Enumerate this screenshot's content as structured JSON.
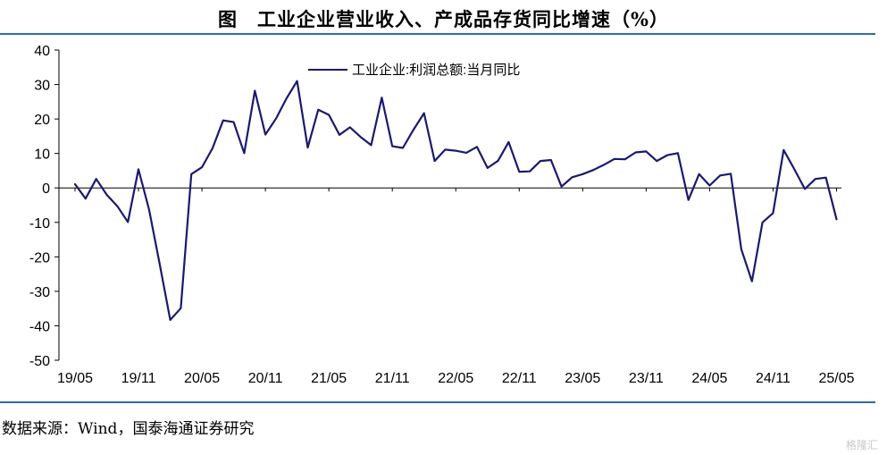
{
  "figure": {
    "title": "图　工业企业营业收入、产成品存货同比增速（%）",
    "source": "数据来源：Wind，国泰海通证券研究",
    "watermark": "格隆汇"
  },
  "colors": {
    "series": "#1a1a6e",
    "rule": "#2e6da4",
    "axis": "#000000"
  },
  "chart_data": {
    "type": "line",
    "title": "",
    "xlabel": "",
    "ylabel": "",
    "ylim": [
      -50,
      40
    ],
    "yticks": [
      40,
      30,
      20,
      10,
      0,
      -10,
      -20,
      -30,
      -40,
      -50
    ],
    "grid": false,
    "legend_position": "top-center",
    "xticks": [
      "19/05",
      "19/11",
      "20/05",
      "20/11",
      "21/05",
      "21/11",
      "22/05",
      "22/11",
      "23/05",
      "23/11",
      "24/05",
      "24/11",
      "25/05"
    ],
    "x": [
      "19/05",
      "19/06",
      "19/07",
      "19/08",
      "19/09",
      "19/10",
      "19/11",
      "19/12",
      "20/01",
      "20/02",
      "20/03",
      "20/04",
      "20/05",
      "20/06",
      "20/07",
      "20/08",
      "20/09",
      "20/10",
      "20/11",
      "20/12",
      "21/01",
      "21/02",
      "21/03",
      "21/04",
      "21/05",
      "21/06",
      "21/07",
      "21/08",
      "21/09",
      "21/10",
      "21/11",
      "21/12",
      "22/01",
      "22/02",
      "22/03",
      "22/04",
      "22/05",
      "22/06",
      "22/07",
      "22/08",
      "22/09",
      "22/10",
      "22/11",
      "22/12",
      "23/01",
      "23/02",
      "23/03",
      "23/04",
      "23/05",
      "23/06",
      "23/07",
      "23/08",
      "23/09",
      "23/10",
      "23/11",
      "23/12",
      "24/01",
      "24/02",
      "24/03",
      "24/04",
      "24/05",
      "24/06",
      "24/07",
      "24/08",
      "24/09",
      "24/10",
      "24/11",
      "24/12",
      "25/01",
      "25/02",
      "25/03",
      "25/04",
      "25/05"
    ],
    "series": [
      {
        "name": "工业企业:利润总额:当月同比",
        "values": [
          1.1,
          -3.1,
          2.6,
          -2.0,
          -5.3,
          -9.9,
          5.4,
          -6.3,
          -22.0,
          -38.3,
          -34.9,
          4.0,
          6.0,
          11.5,
          19.6,
          19.1,
          10.1,
          28.2,
          15.5,
          20.1,
          26.0,
          31.0,
          11.7,
          22.7,
          21.2,
          15.4,
          17.6,
          14.8,
          12.4,
          26.2,
          12.1,
          11.6,
          16.9,
          21.7,
          7.8,
          11.1,
          10.8,
          10.2,
          11.9,
          5.8,
          7.9,
          13.3,
          4.7,
          4.8,
          7.8,
          8.1,
          0.4,
          3.1,
          4.0,
          5.2,
          6.7,
          8.4,
          8.3,
          10.3,
          10.6,
          7.8,
          9.5,
          10.1,
          -3.5,
          4.0,
          0.7,
          3.6,
          4.1,
          -17.8,
          -27.1,
          -10.0,
          -7.3,
          11.0,
          5.5,
          -0.3,
          2.6,
          3.0,
          -9.1
        ]
      }
    ]
  }
}
